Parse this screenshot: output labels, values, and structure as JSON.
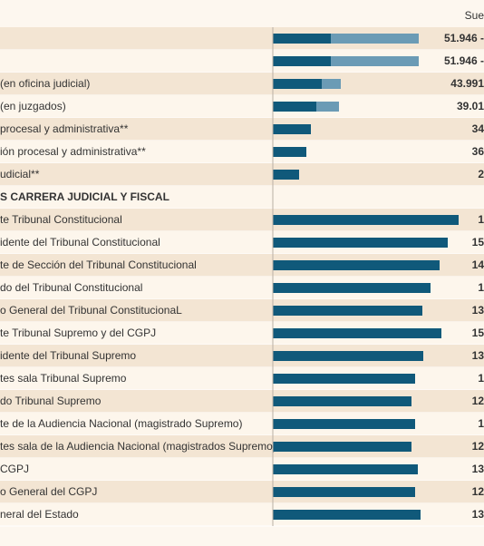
{
  "chart_data": {
    "type": "bar",
    "header": "Sue",
    "xlim": [
      0,
      220
    ],
    "colors": [
      "#10597a",
      "#6b9bb5"
    ],
    "rows": [
      {
        "label": "",
        "values": [
          64,
          97
        ],
        "amount": "51.946 -"
      },
      {
        "label": "",
        "values": [
          64,
          97
        ],
        "amount": "51.946 -"
      },
      {
        "label": " (en oficina judicial)",
        "values": [
          54,
          21
        ],
        "amount": "43.991"
      },
      {
        "label": " (en juzgados)",
        "values": [
          48,
          25
        ],
        "amount": "39.01"
      },
      {
        "label": "procesal y administrativa**",
        "values": [
          42
        ],
        "amount": "34"
      },
      {
        "label": "ión procesal y administrativa**",
        "values": [
          37
        ],
        "amount": "36"
      },
      {
        "label": "udicial**",
        "values": [
          29
        ],
        "amount": "2"
      },
      {
        "label": "S CARRERA JUDICIAL Y FISCAL",
        "values": [],
        "bold": true
      },
      {
        "label": "te Tribunal Constitucional",
        "values": [
          205
        ],
        "amount": "1"
      },
      {
        "label": "idente del Tribunal Constitucional",
        "values": [
          193
        ],
        "amount": "15"
      },
      {
        "label": "te de Sección del Tribunal Constitucional",
        "values": [
          184
        ],
        "amount": "14"
      },
      {
        "label": "do del Tribunal Constitucional",
        "values": [
          174
        ],
        "amount": "1"
      },
      {
        "label": "o General del Tribunal ConstitucionaL",
        "values": [
          165
        ],
        "amount": "13"
      },
      {
        "label": "te Tribunal Supremo y del CGPJ",
        "values": [
          186
        ],
        "amount": "15"
      },
      {
        "label": "idente del Tribunal Supremo",
        "values": [
          166
        ],
        "amount": "13"
      },
      {
        "label": "tes sala Tribunal Supremo",
        "values": [
          157
        ],
        "amount": "1"
      },
      {
        "label": "do Tribunal Supremo",
        "values": [
          153
        ],
        "amount": "12"
      },
      {
        "label": "te de la Audiencia Nacional (magistrado Supremo)",
        "values": [
          157
        ],
        "amount": "1"
      },
      {
        "label": "tes sala de la Audiencia Nacional (magistrados Supremo)",
        "values": [
          153
        ],
        "amount": "12"
      },
      {
        "label": " CGPJ",
        "values": [
          160
        ],
        "amount": "13"
      },
      {
        "label": "o General del CGPJ",
        "values": [
          157
        ],
        "amount": "12"
      },
      {
        "label": "neral del Estado",
        "values": [
          163
        ],
        "amount": "13"
      }
    ]
  }
}
